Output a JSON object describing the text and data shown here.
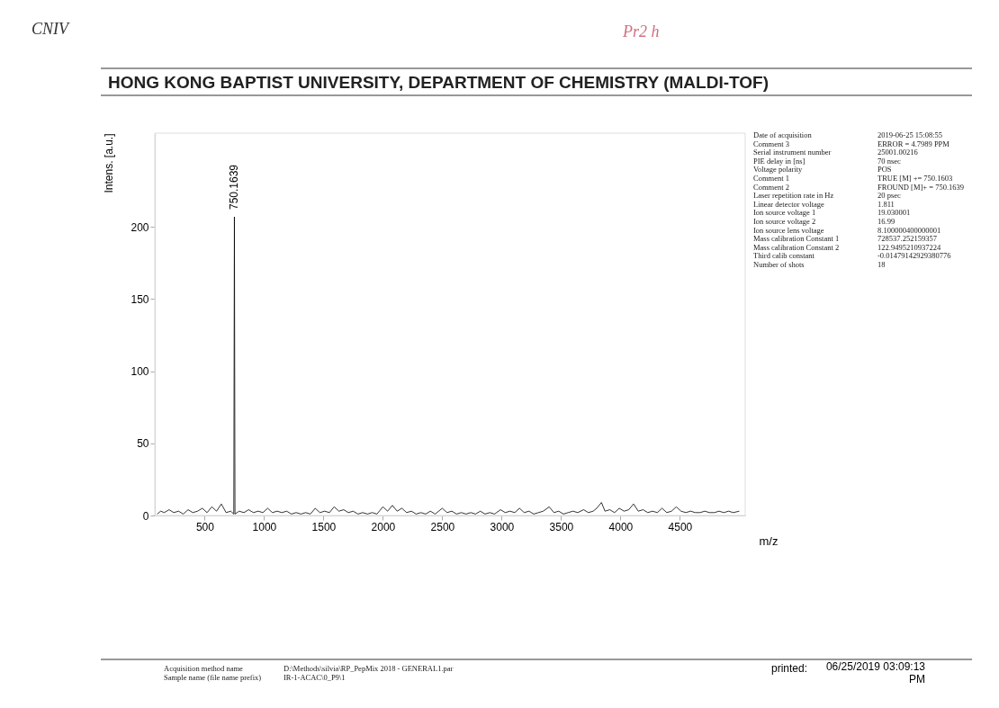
{
  "chart_data": {
    "type": "line",
    "title": "HONG KONG BAPTIST UNIVERSITY, DEPARTMENT OF CHEMISTRY (MALDI-TOF)",
    "xlabel": "m/z",
    "ylabel": "Intens. [a.u.]",
    "x": [
      100,
      130,
      160,
      200,
      240,
      280,
      320,
      360,
      400,
      440,
      480,
      520,
      560,
      600,
      640,
      680,
      720,
      745,
      750.1639,
      755,
      790,
      830,
      870,
      910,
      950,
      990,
      1030,
      1070,
      1110,
      1150,
      1190,
      1230,
      1270,
      1310,
      1350,
      1390,
      1430,
      1470,
      1510,
      1550,
      1590,
      1630,
      1670,
      1710,
      1750,
      1790,
      1830,
      1870,
      1910,
      1950,
      2000,
      2040,
      2080,
      2120,
      2160,
      2200,
      2240,
      2280,
      2320,
      2360,
      2400,
      2440,
      2500,
      2540,
      2580,
      2620,
      2660,
      2700,
      2740,
      2780,
      2820,
      2860,
      2900,
      2940,
      2990,
      3030,
      3070,
      3110,
      3150,
      3190,
      3230,
      3270,
      3310,
      3350,
      3400,
      3440,
      3480,
      3520,
      3560,
      3600,
      3640,
      3690,
      3730,
      3770,
      3800,
      3840,
      3870,
      3910,
      3950,
      3990,
      4030,
      4070,
      4110,
      4150,
      4190,
      4230,
      4270,
      4310,
      4350,
      4390,
      4430,
      4470,
      4510,
      4550,
      4590,
      4630,
      4670,
      4710,
      4750,
      4790,
      4830,
      4870,
      4910,
      4950,
      5000
    ],
    "series": [
      {
        "color": "#000000",
        "values": [
          1,
          3,
          2,
          4,
          2,
          3,
          1,
          4,
          2,
          3,
          5,
          2,
          6,
          3,
          8,
          2,
          3,
          1,
          207,
          1,
          3,
          2,
          4,
          2,
          3,
          2,
          5,
          2,
          3,
          2,
          3,
          1,
          2,
          1,
          2,
          1,
          5,
          2,
          3,
          2,
          6,
          3,
          4,
          2,
          3,
          1,
          2,
          1,
          2,
          1,
          6,
          3,
          7,
          3,
          5,
          2,
          3,
          1,
          2,
          1,
          3,
          1,
          5,
          2,
          3,
          1,
          2,
          1,
          2,
          1,
          3,
          1,
          2,
          1,
          4,
          2,
          3,
          2,
          5,
          2,
          3,
          1,
          2,
          3,
          6,
          2,
          3,
          1,
          2,
          3,
          2,
          4,
          2,
          3,
          5,
          9,
          3,
          4,
          2,
          5,
          3,
          4,
          8,
          3,
          4,
          2,
          3,
          2,
          5,
          2,
          3,
          6,
          3,
          2,
          3,
          2,
          2,
          3,
          2,
          2,
          3,
          2,
          3,
          2,
          3
        ]
      }
    ],
    "xlim": [
      80,
      5050
    ],
    "ylim": [
      0,
      265
    ],
    "xticks": [
      500,
      1000,
      1500,
      2000,
      2500,
      3000,
      3500,
      4000,
      4500
    ],
    "yticks": [
      0,
      50,
      100,
      150,
      200
    ],
    "grid": false,
    "marker": "none",
    "line_style": "solid",
    "annotations": [
      "CNIV",
      "Pr2 h",
      {
        "text": "750.1639",
        "x": 750.1639,
        "y": 207
      },
      "Date of acquisition\t2019-06-25 15:08:55",
      "Comment 3\tERROR = 4.7989 PPM",
      "Serial instrument number\t25001.00216",
      "PIE delay in [ns]\t70 nsec",
      "Voltage polarity\tPOS",
      "Comment 1\tTRUE [M] +=  750.1603",
      "Comment 2\tFROUND [M]+  = 750.1639",
      "Laser repetition rate in Hz\t20 psec",
      "Linear detector voltage\t1.811",
      "Ion source voltage 1\t19.030001",
      "Ion source voltage 2\t16.99",
      "Ion source lens voltage\t8.100000400000001",
      "Mass calibration Constant 1\t728537.252159357",
      "Mass calibration Constant 2\t122.9495210937224",
      "Third calib constant\t-0.01479142929380776",
      "Number of shots\t18",
      "Acquisition method name\tD:\\Methods\\silvia\\RP_PepMix 2018 - GENERAL1.par",
      "Sample name (file name prefix)\tIR-1-ACAC\\0_P9\\1",
      "printed:\t06/25/2019 03:09:13 PM"
    ]
  }
}
